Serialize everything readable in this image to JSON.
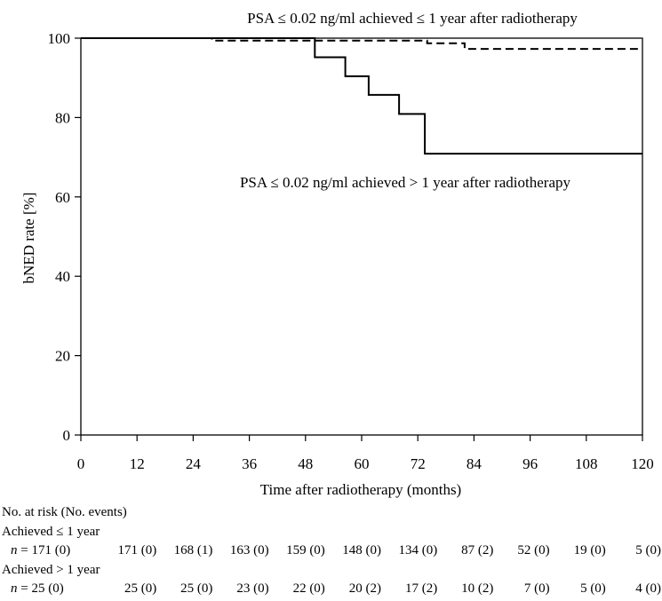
{
  "chart_data": {
    "type": "line",
    "title": "",
    "xlabel": "Time after radiotherapy (months)",
    "ylabel": "bNED rate [%]",
    "xlim": [
      0,
      120
    ],
    "ylim": [
      0,
      100
    ],
    "x_ticks": [
      "0",
      "12",
      "24",
      "36",
      "48",
      "60",
      "72",
      "84",
      "96",
      "108",
      "120"
    ],
    "y_ticks": [
      "0",
      "20",
      "40",
      "60",
      "80",
      "100"
    ],
    "grid": false,
    "series": [
      {
        "name": "PSA ≤ 0.02 ng/ml achieved ≤ 1 year after radiotherapy",
        "style": "dashed",
        "x": [
          0,
          28,
          28,
          74,
          74,
          82,
          82,
          120
        ],
        "y": [
          100,
          100,
          99.4,
          99.4,
          98.7,
          98.7,
          97.3,
          97.3
        ]
      },
      {
        "name": "PSA ≤ 0.02 ng/ml achieved > 1 year after radiotherapy",
        "style": "solid",
        "x": [
          0,
          50,
          50,
          56.5,
          56.5,
          61.5,
          61.5,
          68,
          68,
          73.5,
          73.5,
          120
        ],
        "y": [
          100,
          100,
          95.2,
          95.2,
          90.4,
          90.4,
          85.7,
          85.7,
          80.9,
          80.9,
          70.9,
          70.9
        ]
      }
    ]
  },
  "risk_table": {
    "heading": "No. at risk (No. events)",
    "groups": [
      {
        "label": "Achieved ≤ 1 year",
        "n_prefix": "n",
        "cells": [
          "= 171 (0)",
          "171 (0)",
          "168 (1)",
          "163 (0)",
          "159 (0)",
          "148 (0)",
          "134 (0)",
          "87 (2)",
          "52 (0)",
          "19 (0)",
          "5 (0)"
        ]
      },
      {
        "label": "Achieved > 1 year",
        "n_prefix": "n",
        "cells": [
          "= 25 (0)",
          "25 (0)",
          "25 (0)",
          "23 (0)",
          "22 (0)",
          "20 (2)",
          "17 (2)",
          "10 (2)",
          "7 (0)",
          "5 (0)",
          "4 (0)"
        ]
      }
    ]
  }
}
